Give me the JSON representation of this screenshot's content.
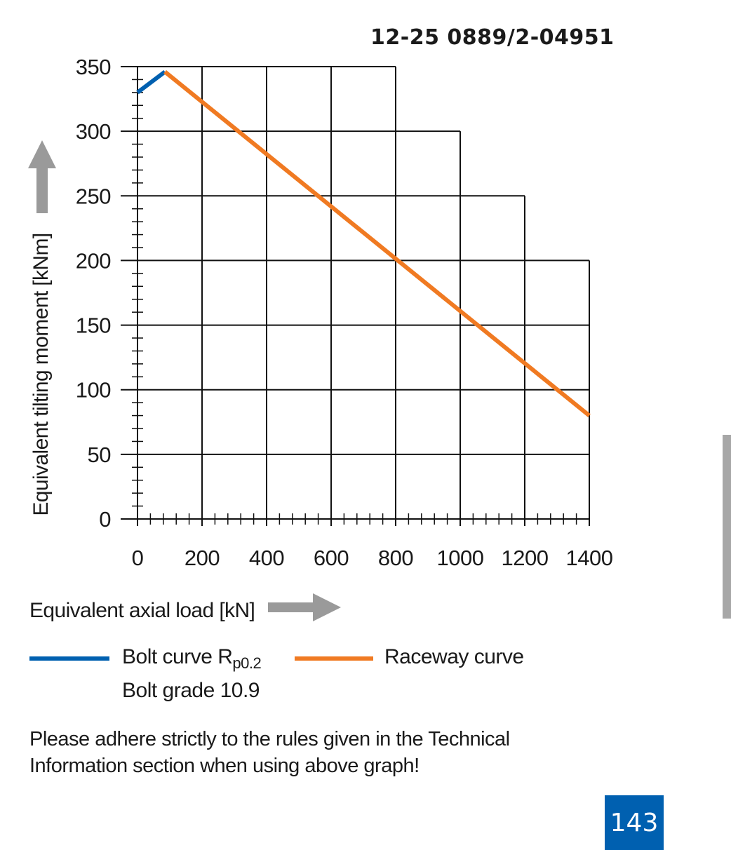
{
  "header": {
    "doc_number": "12-25 0889/2-04951"
  },
  "chart_data": {
    "type": "line",
    "xlabel": "Equivalent axial load [kN]",
    "ylabel": "Equivalent tilting moment [kNm]",
    "xlim": [
      0,
      1400
    ],
    "ylim": [
      0,
      350
    ],
    "x_ticks": [
      "0",
      "200",
      "400",
      "600",
      "800",
      "1000",
      "1200",
      "1400"
    ],
    "y_ticks": [
      "0",
      "50",
      "100",
      "150",
      "200",
      "250",
      "300",
      "350"
    ],
    "grid": true,
    "legend_position": "bottom",
    "series": [
      {
        "name": "Bolt curve R p0.2",
        "color": "#0060b0",
        "x": [
          0,
          85
        ],
        "y": [
          330,
          346
        ]
      },
      {
        "name": "Raceway curve",
        "color": "#f07a22",
        "x": [
          85,
          1400
        ],
        "y": [
          346,
          80
        ]
      }
    ]
  },
  "legend": {
    "bolt_label": "Bolt curve  R",
    "bolt_subscript": "p0.2",
    "bolt_grade": "Bolt grade 10.9",
    "raceway_label": "Raceway curve"
  },
  "arrows": {
    "color": "#9a9a9a"
  },
  "note": "Please adhere strictly to the rules given in the Technical\nInformation section when using above graph!",
  "page_number": {
    "text": "143",
    "color": "#0060b0"
  },
  "side_tab": {
    "color": "#a7a7a7"
  }
}
